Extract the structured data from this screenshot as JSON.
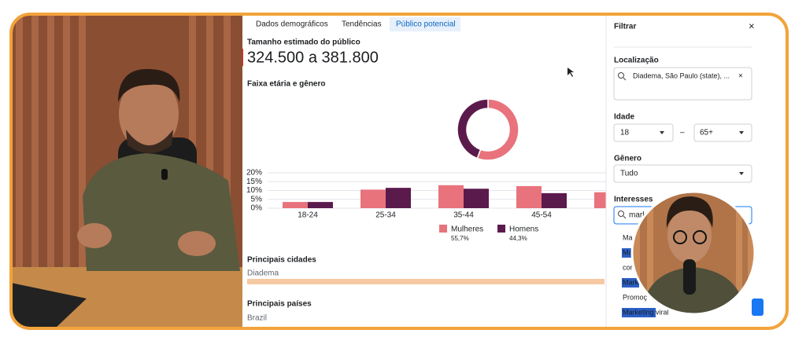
{
  "tabs": [
    "Dados demográficos",
    "Tendências",
    "Público potencial"
  ],
  "audience": {
    "label": "Tamanho estimado do público",
    "value": "324.500 a 381.800"
  },
  "chart_data": {
    "type": "bar",
    "title": "Faixa etária e gênero",
    "categories": [
      "18-24",
      "25-34",
      "35-44",
      "45-54",
      null
    ],
    "series": [
      {
        "name": "Mulheres",
        "color": "#e8737c",
        "values": [
          3.5,
          10.5,
          13,
          12.5,
          9
        ]
      },
      {
        "name": "Homens",
        "color": "#5b1a4c",
        "values": [
          3.5,
          11.5,
          11,
          8.5,
          null
        ]
      }
    ],
    "ylim": [
      0,
      20
    ],
    "yticks": [
      {
        "value": 0,
        "label": "0%"
      },
      {
        "value": 5,
        "label": "5%"
      },
      {
        "value": 10,
        "label": "10%"
      },
      {
        "value": 15,
        "label": "15%"
      },
      {
        "value": 20,
        "label": "20%"
      }
    ],
    "share": {
      "type": "pie",
      "values": [
        55.7,
        44.3
      ],
      "value_labels": [
        "55,7%",
        "44,3%"
      ]
    }
  },
  "cities": {
    "title": "Principais cidades",
    "items": [
      "Diadema"
    ]
  },
  "countries": {
    "title": "Principais países",
    "items": [
      "Brazil"
    ]
  },
  "filter": {
    "title": "Filtrar",
    "location_label": "Localização",
    "location_value": "Diadema, São Paulo (state), ...",
    "age_label": "Idade",
    "age_min": "18",
    "age_sep": "–",
    "age_max": "65+",
    "gender_label": "Gênero",
    "gender_value": "Tudo",
    "interests_label": "Interesses",
    "interests_value": "mark",
    "suggestions": [
      "Ma",
      "Mark",
      "cor",
      "Mark",
      "Promoç",
      "Marketing viral"
    ]
  }
}
